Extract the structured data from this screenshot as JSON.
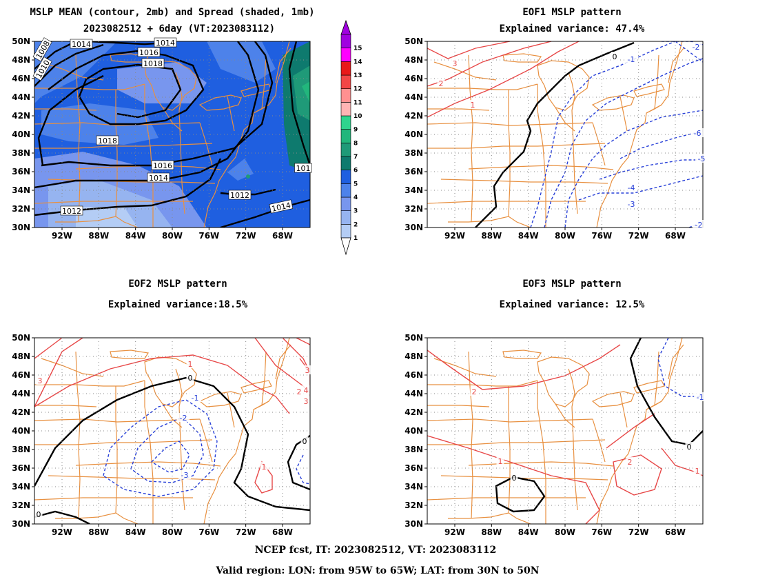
{
  "panels": [
    {
      "id": "mean",
      "title_line1": "MSLP MEAN (contour, 2mb) and Spread (shaded, 1mb)",
      "title_line2": "2023082512 + 6day (VT:2023083112)",
      "contour_labels": [
        "1008",
        "1010",
        "1014",
        "1014",
        "1016",
        "1018",
        "1018",
        "1016",
        "1014",
        "1012",
        "1012",
        "1014",
        "101"
      ]
    },
    {
      "id": "eof1",
      "title_line1": "EOF1 MSLP pattern",
      "title_line2": "Explained variance: 47.4%",
      "contour_labels": [
        "3",
        "2",
        "1",
        "0",
        "-1",
        "-2",
        "-3",
        "-4",
        "-5",
        "-6",
        "-2"
      ]
    },
    {
      "id": "eof2",
      "title_line1": "EOF2 MSLP pattern",
      "title_line2": "Explained variance:18.5%",
      "contour_labels": [
        "3",
        "1",
        "0",
        "-1",
        "-2",
        "-3",
        "1",
        "0",
        "2",
        "3",
        "4",
        "3",
        "0"
      ]
    },
    {
      "id": "eof3",
      "title_line1": "EOF3 MSLP pattern",
      "title_line2": "Explained variance: 12.5%",
      "contour_labels": [
        "2",
        "1",
        "0",
        "2",
        "1",
        "0",
        "-1"
      ]
    }
  ],
  "axes": {
    "lat_labels": [
      "50N",
      "48N",
      "46N",
      "44N",
      "42N",
      "40N",
      "38N",
      "36N",
      "34N",
      "32N",
      "30N"
    ],
    "lon_labels": [
      "92W",
      "88W",
      "84W",
      "80W",
      "76W",
      "72W",
      "68W"
    ]
  },
  "colorbar": {
    "levels": [
      "1",
      "2",
      "3",
      "4",
      "5",
      "6",
      "7",
      "8",
      "9",
      "10",
      "11",
      "12",
      "13",
      "14",
      "15"
    ],
    "colors": [
      "#b4cdf5",
      "#96b4f0",
      "#7896ee",
      "#4d82ea",
      "#1f5fe0",
      "#0e7a6e",
      "#1f9a78",
      "#22b67c",
      "#2fd48e",
      "#ffb4b4",
      "#ff9090",
      "#f24646",
      "#e81818",
      "#ff00ff",
      "#a000e0"
    ]
  },
  "colors": {
    "coast": "#e89040",
    "positive": "#e84848",
    "negative": "#2840d8",
    "zero": "#000000"
  },
  "footer": {
    "line1": "NCEP fcst, IT: 2023082512, VT: 2023083112",
    "line2": "Valid region: LON: from 95W to 65W; LAT: from 30N to 50N"
  }
}
